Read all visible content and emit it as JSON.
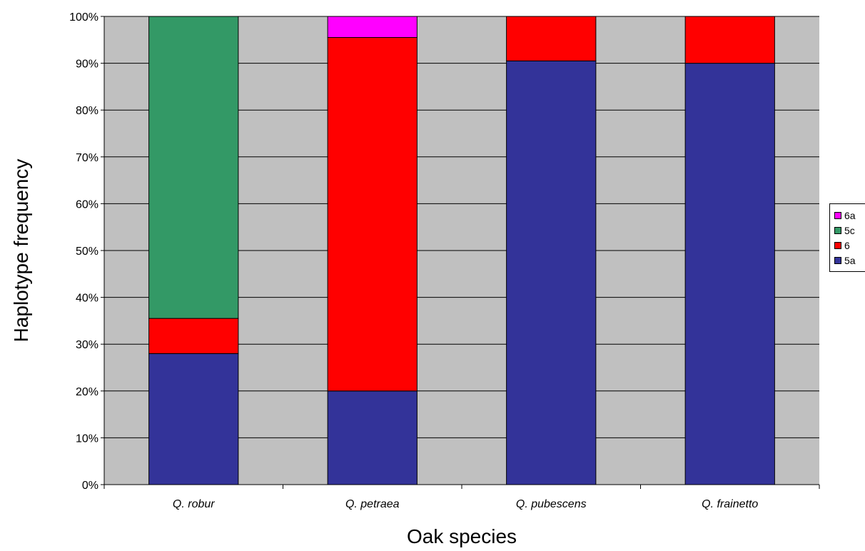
{
  "chart_data": {
    "type": "bar",
    "stacked": true,
    "percent_stacked": true,
    "categories": [
      "Q. robur",
      "Q. petraea",
      "Q. pubescens",
      "Q. frainetto"
    ],
    "series": [
      {
        "name": "5a",
        "color": "#333399",
        "values": [
          28,
          20,
          90.5,
          90
        ]
      },
      {
        "name": "6",
        "color": "#ff0000",
        "values": [
          7.5,
          75.5,
          9.5,
          10
        ]
      },
      {
        "name": "5c",
        "color": "#339966",
        "values": [
          64.5,
          0,
          0,
          0
        ]
      },
      {
        "name": "6a",
        "color": "#ff00ff",
        "values": [
          0,
          4.5,
          0,
          0
        ]
      }
    ],
    "xlabel": "Oak species",
    "ylabel": "Haplotype frequency",
    "ylim": [
      0,
      100
    ],
    "yticks": [
      "0%",
      "10%",
      "20%",
      "30%",
      "40%",
      "50%",
      "60%",
      "70%",
      "80%",
      "90%",
      "100%"
    ],
    "grid": true,
    "plot_background": "#c0c0c0",
    "legend_position": "right"
  }
}
